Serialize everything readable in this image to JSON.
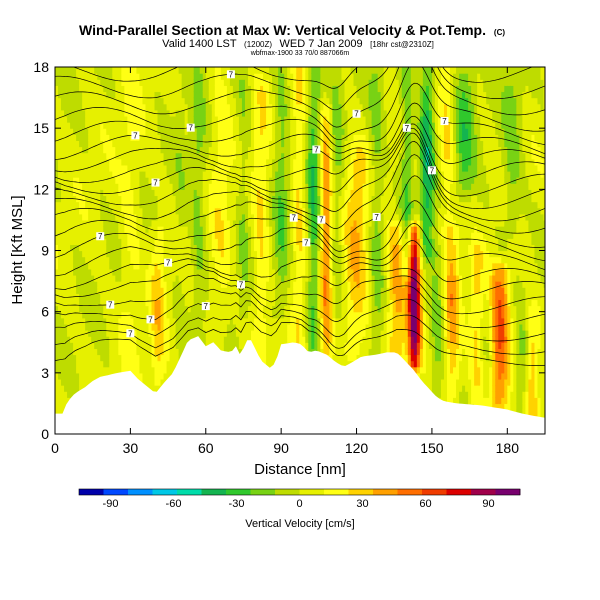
{
  "chart_data": {
    "type": "heatmap",
    "title": "Wind-Parallel Section at Max W: Vertical Velocity & Pot.Temp.",
    "title_tag": "(C)",
    "subtitle_main": "Valid 1400 LST",
    "subtitle_paren": "(1200Z)",
    "subtitle_date": "WED 7 Jan 2009",
    "subtitle_run": "[18hr cst@2310Z]",
    "subtitle_small": "wbfmax-1900 33 70/0 887066m",
    "xlabel": "Distance [nm]",
    "ylabel": "Height [Kft MSL]",
    "x_ticks": [
      0,
      30,
      60,
      90,
      120,
      150,
      180
    ],
    "y_ticks": [
      0,
      3,
      6,
      9,
      12,
      15,
      18
    ],
    "xlim": [
      0,
      195
    ],
    "ylim": [
      0,
      18
    ],
    "colorbar_label": "Vertical Velocity [cm/s]",
    "colorbar_ticks": [
      -90,
      -60,
      -30,
      0,
      30,
      60,
      90
    ],
    "colorbar_range": [
      -105,
      105
    ],
    "colorbar_colors": [
      "#0000aa",
      "#0048ff",
      "#0090ff",
      "#00c8e6",
      "#00dcaa",
      "#14b450",
      "#30c82c",
      "#78d214",
      "#bedc00",
      "#e6f000",
      "#ffff14",
      "#ffd200",
      "#ffa000",
      "#ff6e00",
      "#f03c00",
      "#dc0000",
      "#a0004a",
      "#78006e"
    ],
    "terrain_profile": [
      [
        0,
        1
      ],
      [
        3,
        1
      ],
      [
        5,
        1.6
      ],
      [
        8,
        2.0
      ],
      [
        12,
        2.3
      ],
      [
        15,
        2.6
      ],
      [
        18,
        2.8
      ],
      [
        25,
        3.0
      ],
      [
        30,
        3.1
      ],
      [
        33,
        2.7
      ],
      [
        36,
        2.4
      ],
      [
        40,
        2.0
      ],
      [
        42,
        2.3
      ],
      [
        44,
        2.6
      ],
      [
        47,
        3.0
      ],
      [
        50,
        3.8
      ],
      [
        53,
        4.6
      ],
      [
        57,
        4.8
      ],
      [
        60,
        4.3
      ],
      [
        63,
        4.5
      ],
      [
        66,
        4.1
      ],
      [
        70,
        4.0
      ],
      [
        72,
        4.3
      ],
      [
        74,
        3.8
      ],
      [
        76,
        4.6
      ],
      [
        78,
        4.6
      ],
      [
        82,
        3.6
      ],
      [
        86,
        3.2
      ],
      [
        88,
        3.6
      ],
      [
        90,
        4.4
      ],
      [
        95,
        4.5
      ],
      [
        98,
        4.4
      ],
      [
        101,
        4.0
      ],
      [
        104,
        4.1
      ],
      [
        108,
        3.9
      ],
      [
        112,
        3.5
      ],
      [
        115,
        3.3
      ],
      [
        118,
        3.5
      ],
      [
        122,
        3.8
      ],
      [
        128,
        3.9
      ],
      [
        132,
        4.0
      ],
      [
        136,
        4.0
      ],
      [
        140,
        3.5
      ],
      [
        143,
        3.1
      ],
      [
        146,
        2.6
      ],
      [
        149,
        2.2
      ],
      [
        152,
        1.8
      ],
      [
        155,
        1.6
      ],
      [
        160,
        1.5
      ],
      [
        170,
        1.4
      ],
      [
        180,
        1.2
      ],
      [
        186,
        1.0
      ],
      [
        190,
        0.9
      ],
      [
        195,
        0.8
      ]
    ],
    "updrafts": [
      {
        "x": 30,
        "zlo": 2,
        "zhi": 18,
        "w": 4,
        "amp": 12
      },
      {
        "x": 41,
        "zlo": 2.5,
        "zhi": 10,
        "w": 3,
        "amp": 25
      },
      {
        "x": 50,
        "zlo": 3,
        "zhi": 18,
        "w": 2.5,
        "amp": -8
      },
      {
        "x": 57,
        "zlo": 4.5,
        "zhi": 18,
        "w": 3,
        "amp": -18
      },
      {
        "x": 66,
        "zlo": 5,
        "zhi": 18,
        "w": 4,
        "amp": 15
      },
      {
        "x": 75,
        "zlo": 6,
        "zhi": 18,
        "w": 2.5,
        "amp": -14
      },
      {
        "x": 82,
        "zlo": 4,
        "zhi": 17,
        "w": 3,
        "amp": 22
      },
      {
        "x": 90,
        "zlo": 6,
        "zhi": 18,
        "w": 3,
        "amp": -22
      },
      {
        "x": 97,
        "zlo": 4.5,
        "zhi": 18,
        "w": 2.5,
        "amp": 22
      },
      {
        "x": 103,
        "zlo": 4,
        "zhi": 18,
        "w": 2.5,
        "amp": -35
      },
      {
        "x": 108,
        "zlo": 4,
        "zhi": 16,
        "w": 2.5,
        "amp": 45
      },
      {
        "x": 112,
        "zlo": 6,
        "zhi": 18,
        "w": 3,
        "amp": -18
      },
      {
        "x": 120,
        "zlo": 4,
        "zhi": 14,
        "w": 5,
        "amp": 30
      },
      {
        "x": 128,
        "zlo": 4,
        "zhi": 18,
        "w": 3,
        "amp": -20
      },
      {
        "x": 136,
        "zlo": 4,
        "zhi": 10,
        "w": 4,
        "amp": 40
      },
      {
        "x": 140,
        "zlo": 8,
        "zhi": 18,
        "w": 2.5,
        "amp": -28
      },
      {
        "x": 143,
        "zlo": 3.5,
        "zhi": 10,
        "w": 2.5,
        "amp": 105
      },
      {
        "x": 148,
        "zlo": 9,
        "zhi": 18,
        "w": 3,
        "amp": -45
      },
      {
        "x": 152,
        "zlo": 2,
        "zhi": 9,
        "w": 3,
        "amp": -22
      },
      {
        "x": 156,
        "zlo": 10,
        "zhi": 18,
        "w": 3,
        "amp": 22
      },
      {
        "x": 158,
        "zlo": 2,
        "zhi": 10,
        "w": 3,
        "amp": 35
      },
      {
        "x": 163,
        "zlo": 12,
        "zhi": 18,
        "w": 4,
        "amp": -30
      },
      {
        "x": 168,
        "zlo": 1.5,
        "zhi": 9,
        "w": 3,
        "amp": 25
      },
      {
        "x": 172,
        "zlo": 2,
        "zhi": 8,
        "w": 2.5,
        "amp": -12
      },
      {
        "x": 177,
        "zlo": 1.5,
        "zhi": 8,
        "w": 4,
        "amp": 60
      },
      {
        "x": 182,
        "zlo": 10,
        "zhi": 18,
        "w": 4,
        "amp": -20
      },
      {
        "x": 186,
        "zlo": 1,
        "zhi": 5,
        "w": 3,
        "amp": -18
      },
      {
        "x": 190,
        "zlo": 1,
        "zhi": 6,
        "w": 2.5,
        "amp": 30
      }
    ],
    "contour_base_heights": [
      3.6,
      4.2,
      4.9,
      5.6,
      6.3,
      7.0,
      7.6,
      8.3,
      9.0,
      9.7,
      10.4,
      11.0,
      11.6,
      12.2,
      12.8,
      13.4,
      14.0,
      14.7,
      15.4,
      16.2,
      17.0,
      17.8
    ],
    "contour_labels": [
      "7",
      "7",
      "7",
      "7",
      "7",
      "7",
      "7",
      "7",
      "7",
      "7",
      "7",
      "7",
      "7",
      "7",
      "7",
      "7",
      "7",
      "7",
      "7",
      "7"
    ]
  }
}
